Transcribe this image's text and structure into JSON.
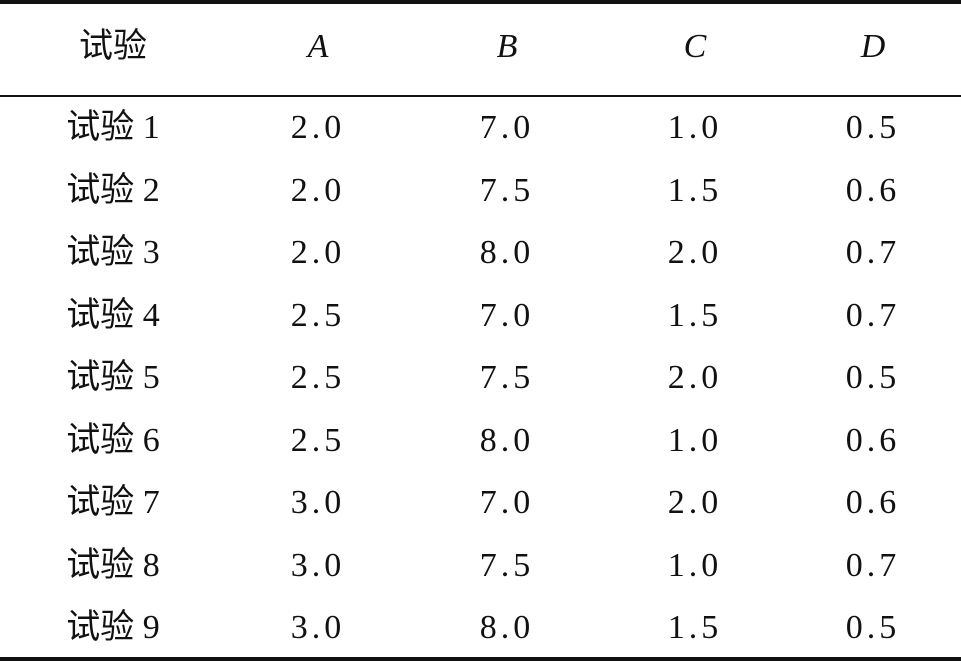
{
  "table": {
    "header": [
      "试验",
      "A",
      "B",
      "C",
      "D"
    ],
    "rows": [
      [
        "试验 1",
        "2.0",
        "7.0",
        "1.0",
        "0.5"
      ],
      [
        "试验 2",
        "2.0",
        "7.5",
        "1.5",
        "0.6"
      ],
      [
        "试验 3",
        "2.0",
        "8.0",
        "2.0",
        "0.7"
      ],
      [
        "试验 4",
        "2.5",
        "7.0",
        "1.5",
        "0.7"
      ],
      [
        "试验 5",
        "2.5",
        "7.5",
        "2.0",
        "0.5"
      ],
      [
        "试验 6",
        "2.5",
        "8.0",
        "1.0",
        "0.6"
      ],
      [
        "试验 7",
        "3.0",
        "7.0",
        "2.0",
        "0.6"
      ],
      [
        "试验 8",
        "3.0",
        "7.5",
        "1.0",
        "0.7"
      ],
      [
        "试验 9",
        "3.0",
        "8.0",
        "1.5",
        "0.5"
      ]
    ]
  }
}
